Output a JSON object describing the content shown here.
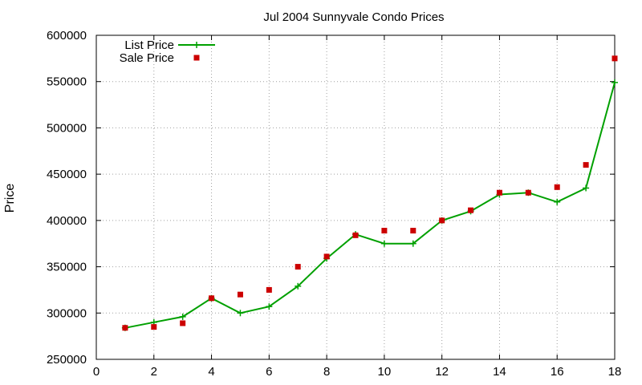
{
  "chart_data": {
    "type": "line",
    "title": "Jul 2004 Sunnyvale Condo Prices",
    "xlabel": "",
    "ylabel": "Price",
    "xlim": [
      0,
      18
    ],
    "ylim": [
      250000,
      600000
    ],
    "xticks": [
      0,
      2,
      4,
      6,
      8,
      10,
      12,
      14,
      16,
      18
    ],
    "yticks": [
      250000,
      300000,
      350000,
      400000,
      450000,
      500000,
      550000,
      600000
    ],
    "grid": true,
    "legend": "top-left",
    "series": [
      {
        "name": "List Price",
        "style": "line-with-plus-markers",
        "color": "#00a000",
        "x": [
          1,
          2,
          3,
          4,
          5,
          6,
          7,
          8,
          9,
          10,
          11,
          12,
          13,
          14,
          15,
          16,
          17,
          18
        ],
        "y": [
          284000,
          290000,
          296000,
          316000,
          300000,
          307000,
          329000,
          359000,
          385000,
          375000,
          375000,
          400000,
          410000,
          428000,
          430000,
          420000,
          435000,
          549000
        ]
      },
      {
        "name": "Sale Price",
        "style": "square-markers",
        "color": "#cc0000",
        "x": [
          1,
          2,
          3,
          4,
          5,
          6,
          7,
          8,
          9,
          10,
          11,
          12,
          13,
          14,
          15,
          16,
          17,
          18
        ],
        "y": [
          284000,
          285000,
          289000,
          316000,
          320000,
          325000,
          350000,
          361000,
          384000,
          389000,
          389000,
          400000,
          411000,
          430000,
          430000,
          436000,
          460000,
          575000
        ]
      }
    ]
  }
}
